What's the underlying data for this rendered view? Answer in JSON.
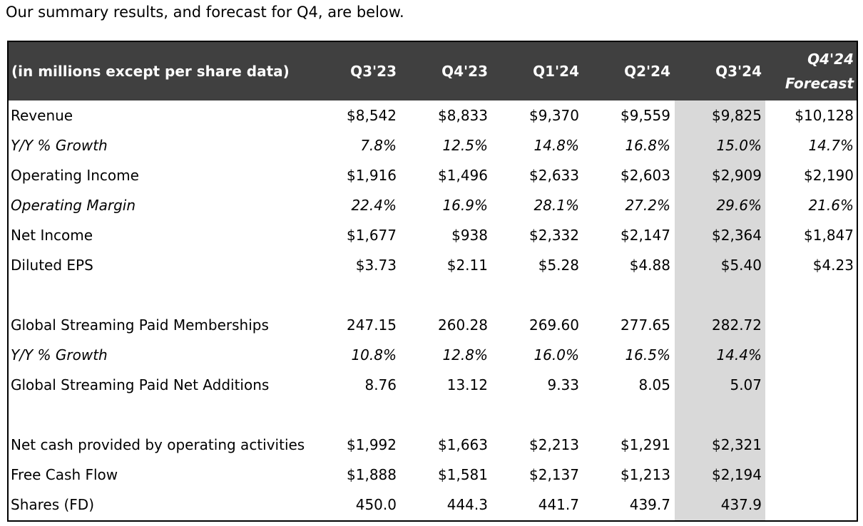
{
  "intro_text": "Our summary results, and forecast for Q4, are below.",
  "table": {
    "header": {
      "label": "(in millions except per share data)",
      "columns": [
        "Q3'23",
        "Q4'23",
        "Q1'24",
        "Q2'24",
        "Q3'24"
      ],
      "forecast_line1": "Q4'24",
      "forecast_line2": "Forecast"
    },
    "rows": [
      {
        "label": "Revenue",
        "values": [
          "$8,542",
          "$8,833",
          "$9,370",
          "$9,559",
          "$9,825",
          "$10,128"
        ]
      },
      {
        "label": "Y/Y % Growth",
        "values": [
          "7.8%",
          "12.5%",
          "14.8%",
          "16.8%",
          "15.0%",
          "14.7%"
        ]
      },
      {
        "label": "Operating Income",
        "values": [
          "$1,916",
          "$1,496",
          "$2,633",
          "$2,603",
          "$2,909",
          "$2,190"
        ]
      },
      {
        "label": "Operating Margin",
        "values": [
          "22.4%",
          "16.9%",
          "28.1%",
          "27.2%",
          "29.6%",
          "21.6%"
        ]
      },
      {
        "label": "Net Income",
        "values": [
          "$1,677",
          "$938",
          "$2,332",
          "$2,147",
          "$2,364",
          "$1,847"
        ]
      },
      {
        "label": "Diluted EPS",
        "values": [
          "$3.73",
          "$2.11",
          "$5.28",
          "$4.88",
          "$5.40",
          "$4.23"
        ]
      },
      {
        "label": "",
        "values": [
          "",
          "",
          "",
          "",
          "",
          ""
        ]
      },
      {
        "label": "Global Streaming Paid Memberships",
        "values": [
          "247.15",
          "260.28",
          "269.60",
          "277.65",
          "282.72",
          ""
        ]
      },
      {
        "label": "Y/Y % Growth",
        "values": [
          "10.8%",
          "12.8%",
          "16.0%",
          "16.5%",
          "14.4%",
          ""
        ]
      },
      {
        "label": "Global Streaming Paid Net Additions",
        "values": [
          "8.76",
          "13.12",
          "9.33",
          "8.05",
          "5.07",
          ""
        ]
      },
      {
        "label": "",
        "values": [
          "",
          "",
          "",
          "",
          "",
          ""
        ]
      },
      {
        "label": "Net cash provided by operating activities",
        "values": [
          "$1,992",
          "$1,663",
          "$2,213",
          "$1,291",
          "$2,321",
          ""
        ]
      },
      {
        "label": "Free Cash Flow",
        "values": [
          "$1,888",
          "$1,581",
          "$2,137",
          "$1,213",
          "$2,194",
          ""
        ]
      },
      {
        "label": "Shares (FD)",
        "values": [
          "450.0",
          "444.3",
          "441.7",
          "439.7",
          "437.9",
          ""
        ]
      }
    ]
  },
  "colors": {
    "header_bg": "#404040",
    "header_text": "#ffffff",
    "highlight_column_bg": "#d9d9d9"
  }
}
